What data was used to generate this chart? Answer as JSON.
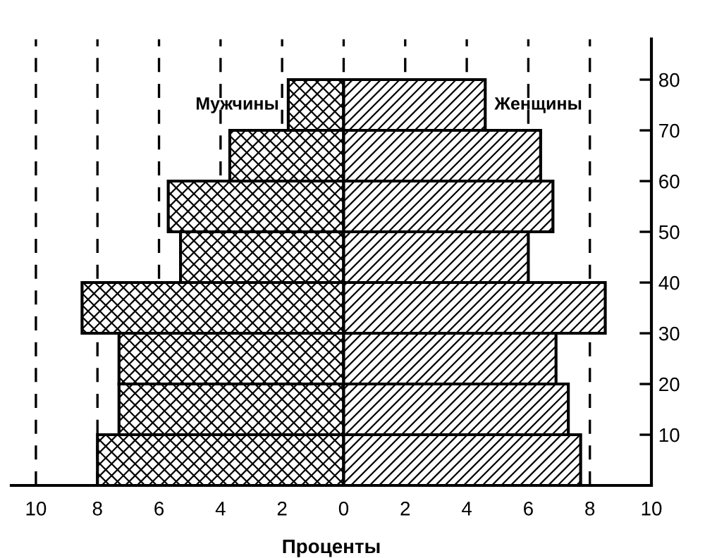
{
  "chart_data": {
    "type": "bar",
    "orientation": "horizontal",
    "xlabel": "Проценты",
    "x": [
      5,
      15,
      25,
      35,
      45,
      55,
      65,
      75
    ],
    "series": [
      {
        "name": "Мужчины",
        "color": "#000000",
        "values": [
          -8.0,
          -7.3,
          -7.3,
          -8.5,
          -5.3,
          -5.7,
          -3.7,
          -1.8
        ]
      },
      {
        "name": "Женщины",
        "color": "#000000",
        "values": [
          7.7,
          7.3,
          6.9,
          8.5,
          6.0,
          6.8,
          6.4,
          4.6
        ]
      }
    ],
    "xlim": [
      -10.8,
      10
    ],
    "xticks": [
      {
        "value": -10,
        "label": "10"
      },
      {
        "value": -8,
        "label": "8"
      },
      {
        "value": -6,
        "label": "6"
      },
      {
        "value": -4,
        "label": "4"
      },
      {
        "value": -2,
        "label": "2"
      },
      0,
      2,
      4,
      6,
      8,
      10
    ],
    "ylim": [
      0,
      88
    ],
    "yticks": [
      10,
      20,
      30,
      40,
      50,
      60,
      70,
      80
    ],
    "stacked": true,
    "grid": "x",
    "line_style": "dashed",
    "legend": false
  }
}
